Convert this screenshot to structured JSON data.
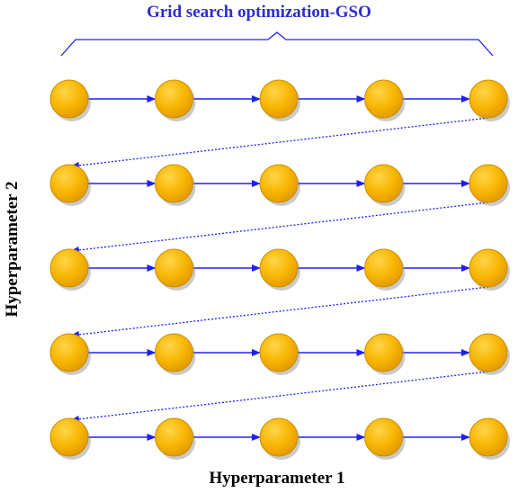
{
  "title": "Grid search optimization-GSO",
  "x_axis_label": "Hyperparameter 1",
  "y_axis_label": "Hyperparameter 2",
  "grid": {
    "rows": 5,
    "columns": 5
  },
  "colors": {
    "title": "#2d2dcc",
    "arrow": "#2020ee",
    "node_fill": "#f7b500",
    "node_edge": "#c98f00",
    "node_shadow": "#8a8a8a",
    "labels": "#000000"
  }
}
